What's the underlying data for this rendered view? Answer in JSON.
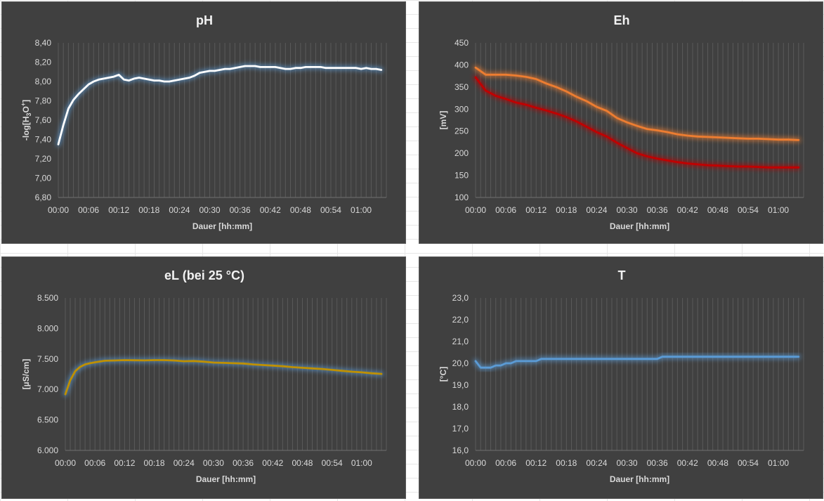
{
  "panels": [
    {
      "title": "pH",
      "chart_data": {
        "type": "line",
        "title": "pH",
        "xlabel": "Dauer [hh:mm]",
        "ylabel": "-log[H3O+]",
        "x_ticks": [
          "00:00",
          "00:06",
          "00:12",
          "00:18",
          "00:24",
          "00:30",
          "00:36",
          "00:42",
          "00:48",
          "00:54",
          "01:00"
        ],
        "x_range": [
          0,
          65
        ],
        "y_range": [
          6.8,
          8.4
        ],
        "y_step": 0.2,
        "y_ticks": [
          "6,80",
          "7,00",
          "7,20",
          "7,40",
          "7,60",
          "7,80",
          "8,00",
          "8,20",
          "8,40"
        ],
        "grid": "vertical",
        "series": [
          {
            "color": "#ffffff",
            "glow": "#5b9bd5",
            "x": [
              0,
              1,
              2,
              3,
              4,
              5,
              6,
              7,
              8,
              9,
              10,
              11,
              12,
              13,
              14,
              15,
              16,
              17,
              18,
              19,
              20,
              21,
              22,
              23,
              24,
              25,
              26,
              27,
              28,
              29,
              30,
              31,
              32,
              33,
              34,
              35,
              36,
              37,
              38,
              39,
              40,
              41,
              42,
              43,
              44,
              45,
              46,
              47,
              48,
              49,
              50,
              51,
              52,
              53,
              54,
              55,
              56,
              57,
              58,
              59,
              60,
              61,
              62,
              63,
              64
            ],
            "values": [
              7.35,
              7.55,
              7.72,
              7.81,
              7.87,
              7.92,
              7.97,
              8.0,
              8.02,
              8.03,
              8.04,
              8.05,
              8.07,
              8.02,
              8.01,
              8.03,
              8.04,
              8.03,
              8.02,
              8.01,
              8.01,
              8.0,
              8.0,
              8.01,
              8.02,
              8.03,
              8.04,
              8.06,
              8.09,
              8.1,
              8.11,
              8.11,
              8.12,
              8.13,
              8.13,
              8.14,
              8.15,
              8.16,
              8.16,
              8.16,
              8.15,
              8.15,
              8.15,
              8.15,
              8.14,
              8.13,
              8.13,
              8.14,
              8.14,
              8.15,
              8.15,
              8.15,
              8.15,
              8.14,
              8.14,
              8.14,
              8.14,
              8.14,
              8.14,
              8.14,
              8.13,
              8.14,
              8.13,
              8.13,
              8.12
            ]
          }
        ]
      }
    },
    {
      "title": "Eh",
      "chart_data": {
        "type": "line",
        "title": "Eh",
        "xlabel": "Dauer [hh:mm]",
        "ylabel": "[mV]",
        "x_ticks": [
          "00:00",
          "00:06",
          "00:12",
          "00:18",
          "00:24",
          "00:30",
          "00:36",
          "00:42",
          "00:48",
          "00:54",
          "01:00"
        ],
        "x_range": [
          0,
          65
        ],
        "y_range": [
          100,
          450
        ],
        "y_step": 50,
        "y_ticks": [
          "100",
          "150",
          "200",
          "250",
          "300",
          "350",
          "400",
          "450"
        ],
        "grid": "vertical",
        "series": [
          {
            "color": "#ed7d31",
            "glow": "#ed7d31",
            "x": [
              0,
              2,
              4,
              6,
              8,
              10,
              12,
              14,
              16,
              18,
              20,
              22,
              24,
              26,
              28,
              30,
              32,
              34,
              36,
              38,
              40,
              42,
              44,
              46,
              48,
              50,
              52,
              54,
              56,
              58,
              60,
              62,
              64
            ],
            "values": [
              394,
              378,
              378,
              378,
              376,
              373,
              368,
              358,
              350,
              340,
              328,
              318,
              305,
              296,
              280,
              270,
              262,
              255,
              252,
              248,
              243,
              240,
              238,
              237,
              236,
              235,
              234,
              233,
              233,
              232,
              231,
              231,
              230
            ]
          },
          {
            "color": "#c00000",
            "glow": "#c00000",
            "x": [
              0,
              2,
              4,
              6,
              8,
              10,
              12,
              14,
              16,
              18,
              20,
              22,
              24,
              26,
              28,
              30,
              32,
              34,
              36,
              38,
              40,
              42,
              44,
              46,
              48,
              50,
              52,
              54,
              56,
              58,
              60,
              62,
              64
            ],
            "values": [
              372,
              342,
              330,
              323,
              315,
              310,
              303,
              297,
              290,
              282,
              272,
              260,
              248,
              238,
              224,
              212,
              200,
              193,
              188,
              184,
              180,
              177,
              175,
              173,
              172,
              171,
              170,
              170,
              169,
              168,
              168,
              168,
              168
            ]
          }
        ]
      }
    },
    {
      "title": "eL (bei 25 °C)",
      "chart_data": {
        "type": "line",
        "title": "eL (bei 25 °C)",
        "xlabel": "Dauer [hh:mm]",
        "ylabel": "[µS/cm]",
        "x_ticks": [
          "00:00",
          "00:06",
          "00:12",
          "00:18",
          "00:24",
          "00:30",
          "00:36",
          "00:42",
          "00:48",
          "00:54",
          "01:00"
        ],
        "x_range": [
          0,
          65
        ],
        "y_range": [
          6000,
          8500
        ],
        "y_step": 500,
        "y_ticks": [
          "6.000",
          "6.500",
          "7.000",
          "7.500",
          "8.000",
          "8.500"
        ],
        "grid": "vertical",
        "series": [
          {
            "color": "#bf9000",
            "glow": "#5b9bd5",
            "x": [
              0,
              1,
              2,
              3,
              4,
              5,
              6,
              8,
              10,
              12,
              14,
              16,
              18,
              20,
              22,
              24,
              26,
              28,
              30,
              32,
              34,
              36,
              38,
              40,
              42,
              44,
              46,
              48,
              50,
              52,
              54,
              56,
              58,
              60,
              62,
              64
            ],
            "values": [
              6920,
              7150,
              7300,
              7370,
              7410,
              7430,
              7445,
              7470,
              7475,
              7480,
              7478,
              7476,
              7480,
              7480,
              7475,
              7462,
              7465,
              7455,
              7440,
              7435,
              7430,
              7425,
              7410,
              7400,
              7390,
              7380,
              7365,
              7355,
              7345,
              7335,
              7320,
              7305,
              7290,
              7280,
              7265,
              7255
            ]
          }
        ]
      }
    },
    {
      "title": "T",
      "chart_data": {
        "type": "line",
        "title": "T",
        "xlabel": "Dauer [hh:mm]",
        "ylabel": "[°C]",
        "x_ticks": [
          "00:00",
          "00:06",
          "00:12",
          "00:18",
          "00:24",
          "00:30",
          "00:36",
          "00:42",
          "00:48",
          "00:54",
          "01:00"
        ],
        "x_range": [
          0,
          65
        ],
        "y_range": [
          16,
          23
        ],
        "y_step": 1,
        "y_ticks": [
          "16,0",
          "17,0",
          "18,0",
          "19,0",
          "20,0",
          "21,0",
          "22,0",
          "23,0"
        ],
        "grid": "vertical",
        "series": [
          {
            "color": "#5b9bd5",
            "glow": "#5b9bd5",
            "x": [
              0,
              1,
              2,
              3,
              4,
              5,
              6,
              7,
              8,
              9,
              10,
              11,
              12,
              13,
              14,
              20,
              30,
              36,
              37,
              38,
              44,
              50,
              56,
              62,
              64
            ],
            "values": [
              20.1,
              19.8,
              19.8,
              19.8,
              19.9,
              19.9,
              20.0,
              20.0,
              20.1,
              20.1,
              20.1,
              20.1,
              20.1,
              20.2,
              20.2,
              20.2,
              20.2,
              20.2,
              20.3,
              20.3,
              20.3,
              20.3,
              20.3,
              20.3,
              20.3
            ]
          }
        ]
      }
    }
  ]
}
